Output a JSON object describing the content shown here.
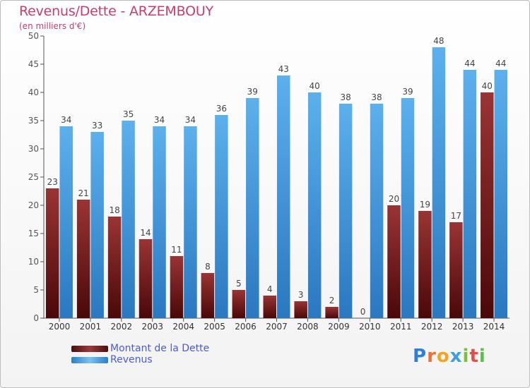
{
  "header": {
    "title": "Revenus/Dette - ARZEMBOUY",
    "subtitle": "(en milliers d'€)"
  },
  "colors": {
    "debt": "#8b2a2a",
    "revenue": "#3a8fd6",
    "title": "#c83c6e",
    "legend_text": "#4a5ae0"
  },
  "legend": [
    {
      "label": "Montant de la Dette",
      "color": "#7a1f1f"
    },
    {
      "label": "Revenus",
      "color": "#4aa0e4"
    }
  ],
  "logo": {
    "letters": [
      "P",
      "r",
      "o",
      "x",
      "i",
      "t",
      "i"
    ],
    "colors": [
      "#2e7fd8",
      "#e8733a",
      "#f2a51f",
      "#3aa0e0",
      "#7bbf3a",
      "#e84a4a",
      "#5abf4a"
    ]
  },
  "chart_data": {
    "type": "bar",
    "title": "Revenus/Dette - ARZEMBOUY",
    "subtitle": "(en milliers d'€)",
    "categories": [
      "2000",
      "2001",
      "2002",
      "2003",
      "2004",
      "2005",
      "2006",
      "2007",
      "2008",
      "2009",
      "2010",
      "2011",
      "2012",
      "2013",
      "2014"
    ],
    "series": [
      {
        "name": "Montant de la Dette",
        "values": [
          23,
          21,
          18,
          14,
          11,
          8,
          5,
          4,
          3,
          2,
          0,
          20,
          19,
          17,
          40
        ]
      },
      {
        "name": "Revenus",
        "values": [
          34,
          33,
          35,
          34,
          34,
          36,
          39,
          43,
          40,
          38,
          38,
          39,
          48,
          44,
          44
        ]
      }
    ],
    "ylim": [
      0,
      50
    ],
    "yticks": [
      0,
      5,
      10,
      15,
      20,
      25,
      30,
      35,
      40,
      45,
      50
    ],
    "grid": false,
    "legend_position": "bottom-left"
  }
}
